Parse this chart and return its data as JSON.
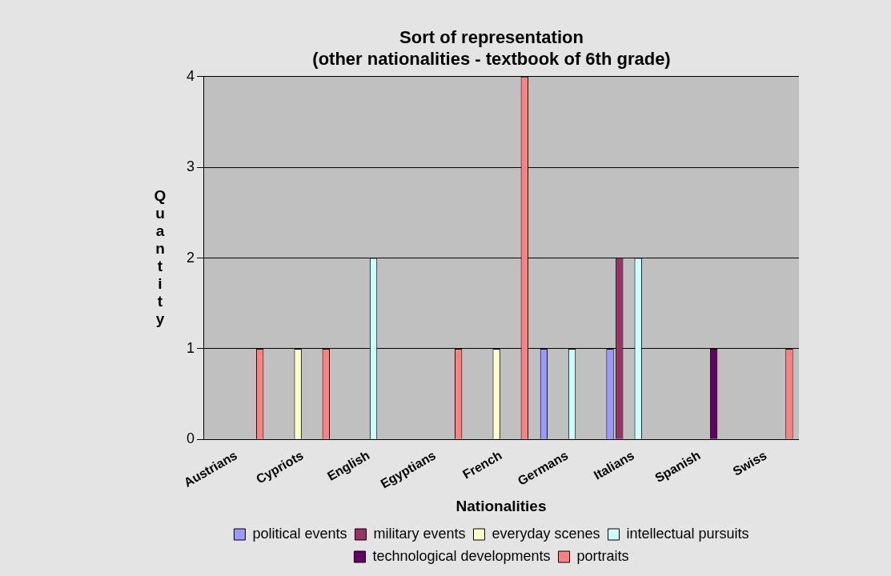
{
  "chart_data": {
    "type": "bar",
    "title": "Sort of representation\n(other nationalities - textbook of 6th grade)",
    "xlabel": "Nationalities",
    "ylabel": "Quantity",
    "categories": [
      "Austrians",
      "Cypriots",
      "English",
      "Egyptians",
      "French",
      "Germans",
      "Italians",
      "Spanish",
      "Swiss"
    ],
    "series": [
      {
        "name": "political events",
        "color": "#9999ff",
        "values": [
          0,
          0,
          0,
          0,
          0,
          1,
          1,
          0,
          0
        ]
      },
      {
        "name": "military events",
        "color": "#993366",
        "values": [
          0,
          0,
          0,
          0,
          0,
          0,
          2,
          0,
          0
        ]
      },
      {
        "name": "everyday scenes",
        "color": "#ffffcc",
        "values": [
          0,
          1,
          0,
          0,
          1,
          0,
          0,
          0,
          0
        ]
      },
      {
        "name": "intellectual pursuits",
        "color": "#ccffff",
        "values": [
          0,
          0,
          2,
          0,
          0,
          1,
          2,
          0,
          0
        ]
      },
      {
        "name": "technological developments",
        "color": "#660066",
        "values": [
          0,
          0,
          0,
          0,
          0,
          0,
          0,
          1,
          0
        ]
      },
      {
        "name": "portraits",
        "color": "#ff8080",
        "values": [
          1,
          1,
          0,
          1,
          4,
          0,
          0,
          0,
          1
        ]
      }
    ],
    "ylim": [
      0,
      4
    ],
    "yticks": [
      0,
      1,
      2,
      3,
      4
    ],
    "grid": "y",
    "legend": "bottom"
  }
}
